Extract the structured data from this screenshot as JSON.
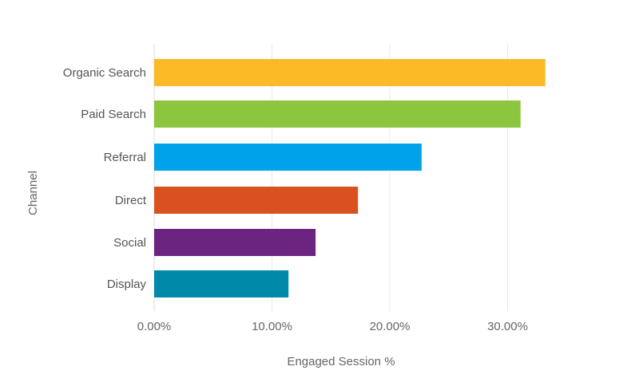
{
  "chart_data": {
    "type": "bar",
    "orientation": "horizontal",
    "categories": [
      "Organic Search",
      "Paid Search",
      "Referral",
      "Direct",
      "Social",
      "Display"
    ],
    "values": [
      0.332,
      0.311,
      0.227,
      0.173,
      0.137,
      0.114
    ],
    "colors": [
      "#FBBA26",
      "#8CC63F",
      "#00A2EA",
      "#DA5120",
      "#6B2480",
      "#0089A8"
    ],
    "xlabel": "Engaged Session %",
    "ylabel": "Channel",
    "xlim": [
      0,
      0.35
    ],
    "xticks": [
      0,
      0.1,
      0.2,
      0.3
    ],
    "xtick_labels": [
      "0.00%",
      "10.00%",
      "20.00%",
      "30.00%"
    ],
    "grid": "vertical",
    "legend": "none"
  }
}
